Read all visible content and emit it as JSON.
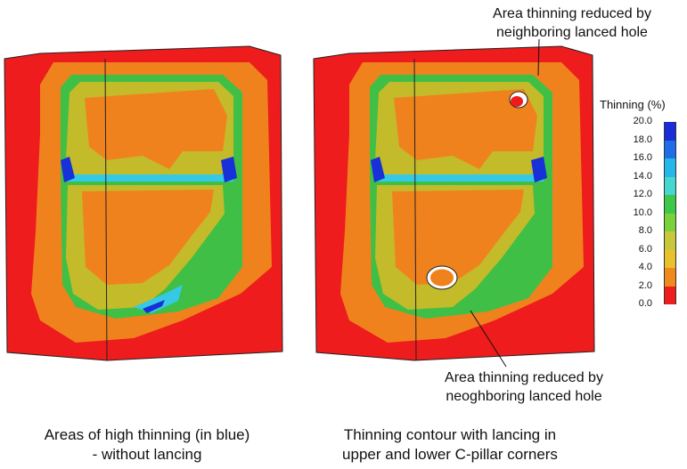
{
  "panels": [
    {
      "id": "without-lancing",
      "caption_line1": "Areas of high thinning (in blue)",
      "caption_line2": "- without lancing"
    },
    {
      "id": "with-lancing",
      "caption_line1": "Thinning contour with lancing in",
      "caption_line2": "upper and lower C-pillar corners"
    }
  ],
  "annotations": {
    "top_line1": "Area thinning reduced by",
    "top_line2": "neighboring lanced hole",
    "bottom_line1": "Area thinning reduced by",
    "bottom_line2": "neoghboring lanced hole"
  },
  "legend": {
    "title": "Thinning (%)",
    "ticks": [
      "20.0",
      "18.0",
      "16.0",
      "14.0",
      "12.0",
      "10.0",
      "8.0",
      "6.0",
      "4.0",
      "2.0",
      "0.0"
    ],
    "colors": [
      "#1a2cd6",
      "#1f6ee8",
      "#25b7e8",
      "#46d7d0",
      "#3ec84a",
      "#7ad23a",
      "#c6c83a",
      "#e8c22c",
      "#f08a1c",
      "#ee1c1c"
    ]
  },
  "colors": {
    "red": "#ee1c1c",
    "orange": "#f0821e",
    "olive": "#c3bb2a",
    "green": "#3fbf45",
    "cyan": "#36c9e6",
    "blue": "#1730d8"
  }
}
